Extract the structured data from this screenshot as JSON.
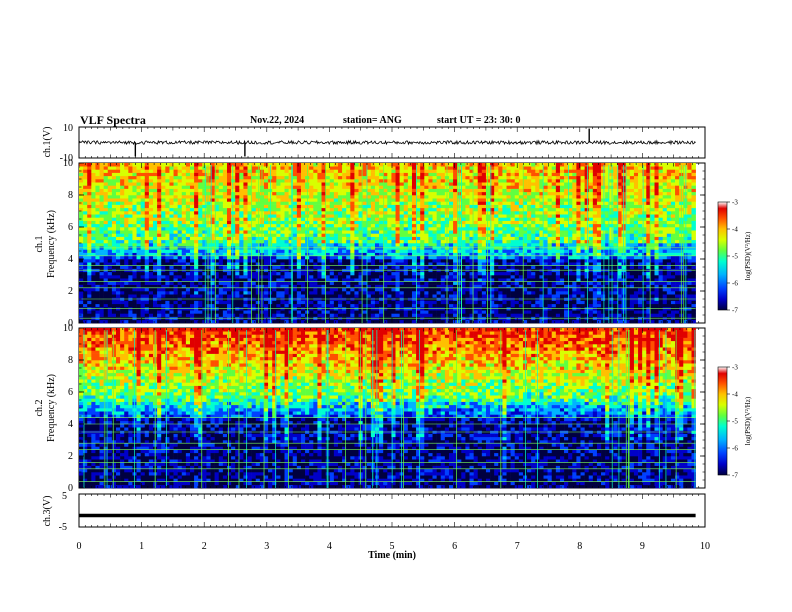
{
  "header": {
    "title": "VLF Spectra",
    "date": "Nov.22, 2024",
    "station": "station= ANG",
    "start": "start  UT  =   23: 30: 0"
  },
  "chart_data": [
    {
      "type": "line",
      "panel": "waveform-ch1",
      "ylabel": "ch.1(V)",
      "ylim": [
        -10,
        10
      ],
      "y_tick_labels": [
        "10",
        "-10"
      ],
      "x_range_min": [
        0,
        9.85
      ],
      "baseline": 0,
      "spikes_min": [
        0.9,
        2.65,
        8.15
      ]
    },
    {
      "type": "heatmap",
      "panel": "spectrogram-ch1",
      "ylabel": "ch.1\nFrequency  (kHz)",
      "ylim": [
        0,
        10
      ],
      "y_ticks": [
        "0",
        "2",
        "4",
        "6",
        "8",
        "10"
      ],
      "x_range_min": [
        0,
        9.85
      ],
      "colorbar": {
        "label": "log(PSD)(V²/Hz)",
        "range": [
          -7,
          -3
        ],
        "ticks": [
          "-3",
          "-4",
          "-5",
          "-6",
          "-7"
        ]
      },
      "bright_band_khz": [
        5.0,
        10.0
      ],
      "noise_lines_khz": [
        0.3,
        0.9,
        1.5,
        2.2,
        2.6,
        3.3,
        3.6,
        4.2,
        4.7
      ]
    },
    {
      "type": "heatmap",
      "panel": "spectrogram-ch2",
      "ylabel": "ch.2\nFrequency  (kHz)",
      "ylim": [
        0,
        10
      ],
      "y_ticks": [
        "0",
        "2",
        "4",
        "6",
        "8",
        "10"
      ],
      "x_range_min": [
        0,
        9.85
      ],
      "colorbar": {
        "label": "log(PSD)(V²/Hz)",
        "range": [
          -7,
          -3
        ],
        "ticks": [
          "-3",
          "-4",
          "-5",
          "-6",
          "-7"
        ]
      },
      "bright_band_khz": [
        5.5,
        10.0
      ],
      "noise_lines_khz": [
        0.4,
        1.2,
        1.6,
        2.4,
        2.8,
        3.5,
        4.0,
        4.4
      ]
    },
    {
      "type": "line",
      "panel": "waveform-ch3",
      "ylabel": "ch.3(V)",
      "ylim": [
        -5,
        5
      ],
      "y_tick_labels": [
        "5",
        "-5"
      ],
      "x_range_min": [
        0,
        9.85
      ],
      "baseline": -1.5
    }
  ],
  "xaxis": {
    "label": "Time  (min)",
    "range": [
      0,
      10
    ],
    "ticks": [
      "0",
      "1",
      "2",
      "3",
      "4",
      "5",
      "6",
      "7",
      "8",
      "9",
      "10"
    ]
  },
  "colors": {
    "colormap": [
      "#000040",
      "#0000c8",
      "#0040ff",
      "#00b4ff",
      "#00ffd0",
      "#60ff40",
      "#d8ff00",
      "#ffc000",
      "#ff5000",
      "#e00000",
      "#ffffff"
    ]
  }
}
